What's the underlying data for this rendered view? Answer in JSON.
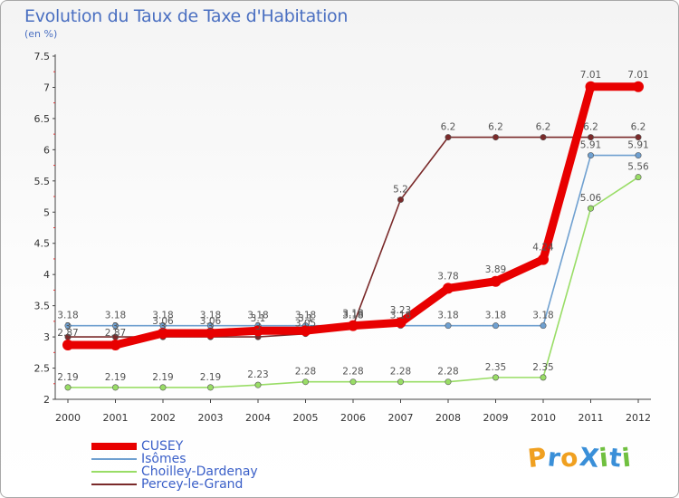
{
  "chart_data": {
    "type": "line",
    "title": "Evolution du Taux de Taxe d'Habitation",
    "unit": "(en %)",
    "x": [
      "2000",
      "2001",
      "2002",
      "2003",
      "2004",
      "2005",
      "2006",
      "2007",
      "2008",
      "2009",
      "2010",
      "2011",
      "2012"
    ],
    "ylim": [
      2,
      7.5
    ],
    "yticks": [
      "2",
      "2.5",
      "3",
      "3.5",
      "4",
      "4.5",
      "5",
      "5.5",
      "6",
      "6.5",
      "7",
      "7.5"
    ],
    "grid": false,
    "legend_position": "bottom-left",
    "series": [
      {
        "name": "CUSEY",
        "color": "#e80000",
        "values": [
          2.87,
          2.87,
          3.06,
          3.06,
          3.1,
          3.1,
          3.18,
          3.23,
          3.78,
          3.89,
          4.24,
          7.01,
          7.01
        ],
        "labels": [
          "2.87",
          "2.87",
          "3.06",
          "3.06",
          "3.1",
          "3.1",
          "3.18",
          "3.23",
          "3.78",
          "3.89",
          "4.24",
          "7.01",
          "7.01"
        ]
      },
      {
        "name": "Isômes",
        "color": "#6fa0d0",
        "values": [
          3.18,
          3.18,
          3.18,
          3.18,
          3.18,
          3.18,
          3.18,
          3.18,
          3.18,
          3.18,
          3.18,
          5.91,
          5.91
        ],
        "labels": [
          "3.18",
          "3.18",
          "3.18",
          "3.18",
          "3.18",
          "3.18",
          "3.18",
          "3.18",
          "3.18",
          "3.18",
          "3.18",
          "5.91",
          "5.91"
        ]
      },
      {
        "name": "Choilley-Dardenay",
        "color": "#99dd66",
        "values": [
          2.19,
          2.19,
          2.19,
          2.19,
          2.23,
          2.28,
          2.28,
          2.28,
          2.28,
          2.35,
          2.35,
          5.06,
          5.56
        ],
        "labels": [
          "2.19",
          "2.19",
          "2.19",
          "2.19",
          "2.23",
          "2.28",
          "2.28",
          "2.28",
          "2.28",
          "2.35",
          "2.35",
          "5.06",
          "5.56"
        ]
      },
      {
        "name": "Percey-le-Grand",
        "color": "#7a2a2a",
        "values": [
          3.0,
          3.0,
          3.0,
          3.0,
          3.0,
          3.05,
          3.18,
          5.2,
          6.2,
          6.2,
          6.2,
          6.2,
          6.2
        ],
        "labels": [
          "3",
          "3",
          "3",
          "3",
          "3",
          "3.05",
          "3.18",
          "5.2",
          "6.2",
          "6.2",
          "6.2",
          "6.2",
          "6.2"
        ]
      }
    ]
  },
  "brand": {
    "text": "ProXiti",
    "letters": [
      "P",
      "r",
      "o",
      "X",
      "i",
      "t",
      "i"
    ],
    "colors": [
      "#f0a020",
      "#3a8fd8",
      "#f0a020",
      "#3a8fd8",
      "#70c040",
      "#3a8fd8",
      "#70c040"
    ]
  }
}
